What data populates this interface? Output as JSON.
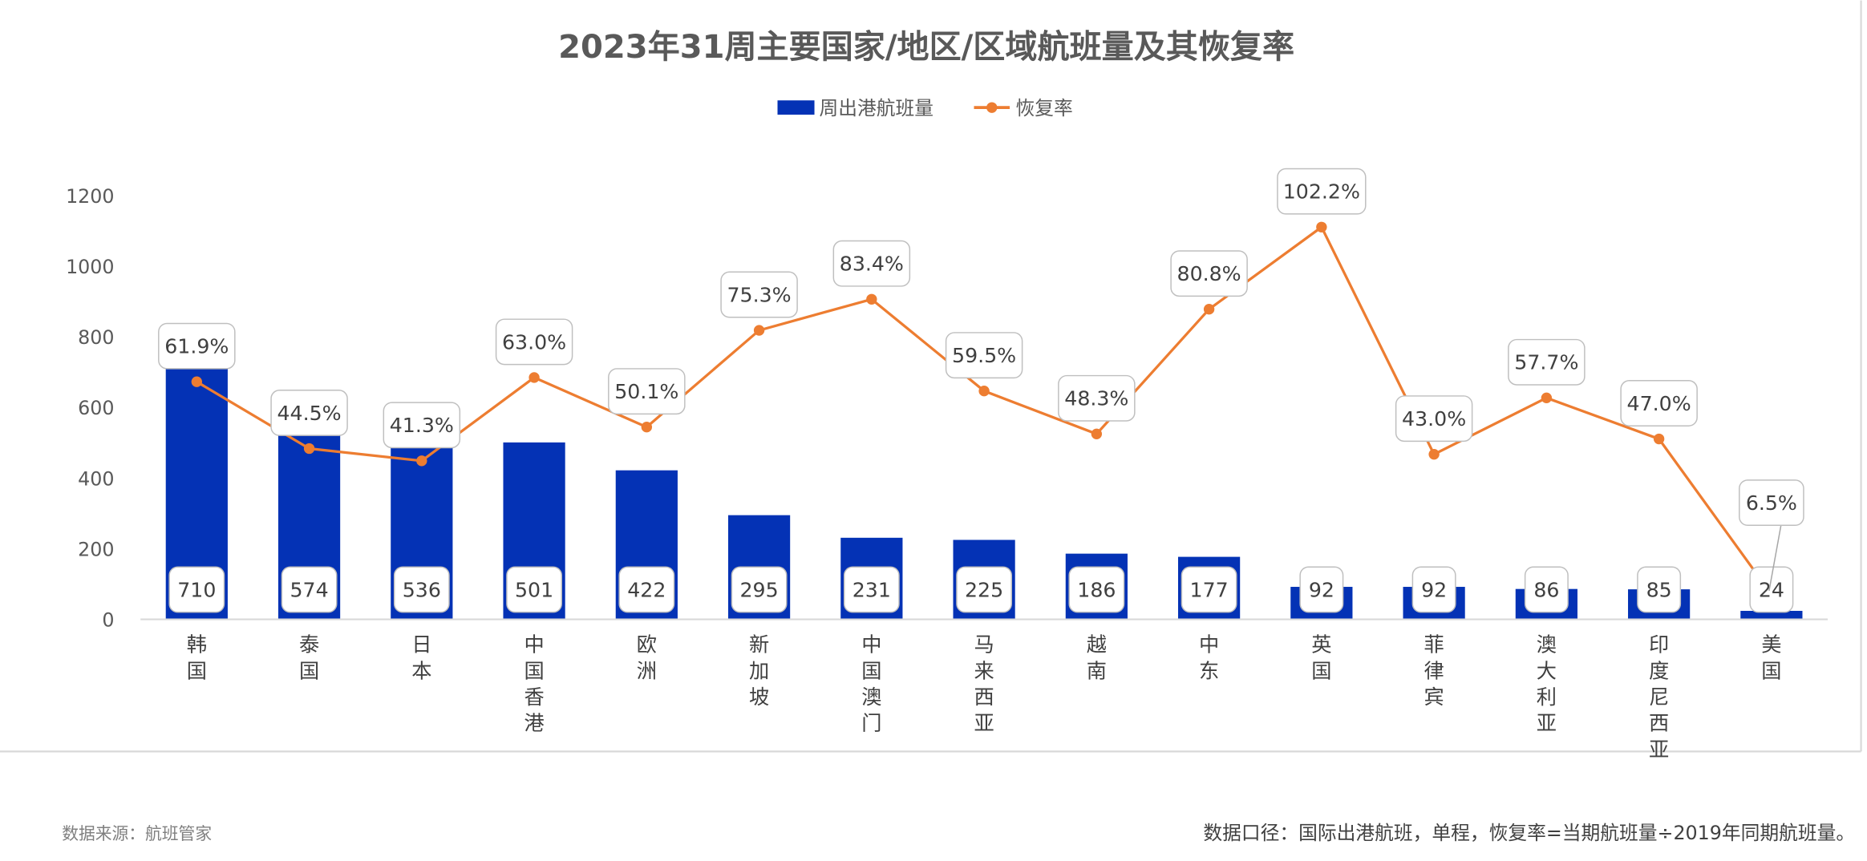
{
  "chart_data": {
    "type": "bar",
    "title": "2023年31周主要国家/地区/区域航班量及其恢复率",
    "categories": [
      "韩国",
      "泰国",
      "日本",
      "中国香港",
      "欧洲",
      "新加坡",
      "中国澳门",
      "马来西亚",
      "越南",
      "中东",
      "英国",
      "菲律宾",
      "澳大利亚",
      "印度尼西亚",
      "美国"
    ],
    "series": [
      {
        "name": "周出港航班量",
        "type": "bar",
        "color": "#0432B5",
        "values": [
          710,
          574,
          536,
          501,
          422,
          295,
          231,
          225,
          186,
          177,
          92,
          92,
          86,
          85,
          24
        ]
      },
      {
        "name": "恢复率",
        "type": "line",
        "color": "#ED7D31",
        "values": [
          61.9,
          44.5,
          41.3,
          63.0,
          50.1,
          75.3,
          83.4,
          59.5,
          48.3,
          80.8,
          102.2,
          43.0,
          57.7,
          47.0,
          6.5
        ],
        "labels": [
          "61.9%",
          "44.5%",
          "41.3%",
          "63.0%",
          "50.1%",
          "75.3%",
          "83.4%",
          "59.5%",
          "48.3%",
          "80.8%",
          "102.2%",
          "43.0%",
          "57.7%",
          "47.0%",
          "6.5%"
        ]
      }
    ],
    "y_ticks": [
      "0",
      "200",
      "400",
      "600",
      "800",
      "1000",
      "1200"
    ],
    "ylim": [
      0,
      1200
    ],
    "y2lim": [
      0,
      110.4
    ],
    "legend_position": "top-center",
    "grid": false
  },
  "footer": {
    "source": "数据来源：航班管家",
    "note": "数据口径：国际出港航班，单程，恢复率=当期航班量÷2019年同期航班量。"
  }
}
